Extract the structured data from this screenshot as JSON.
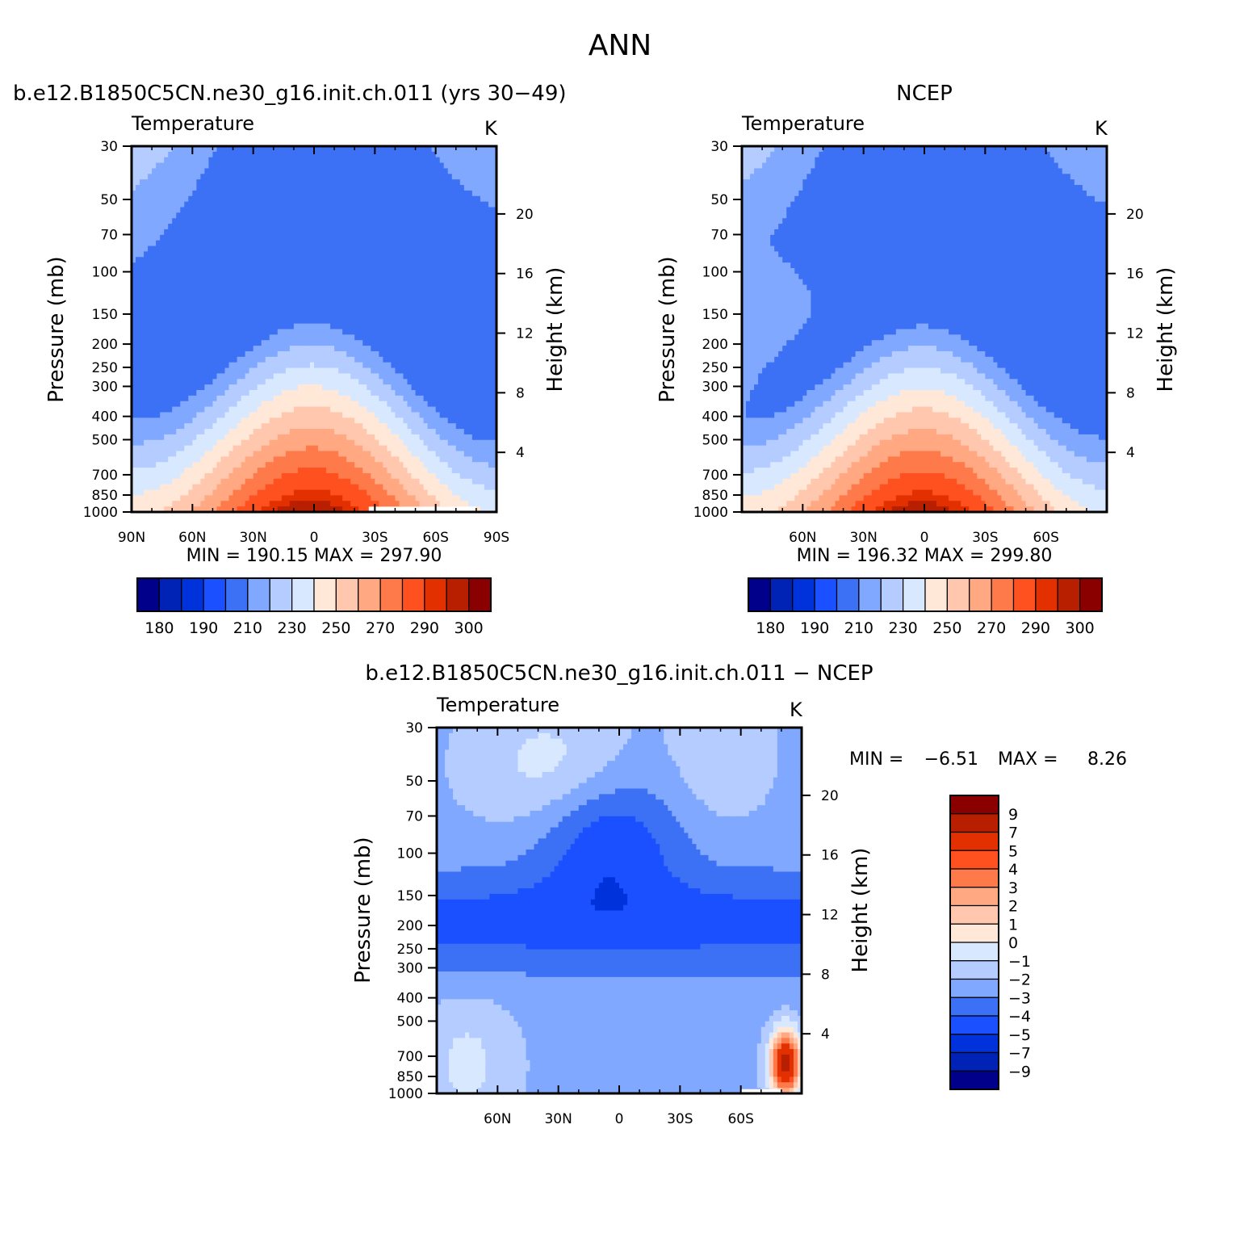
{
  "page": {
    "title": "ANN"
  },
  "colors": {
    "temperature_scale": [
      "#00008a",
      "#0022b5",
      "#0032dc",
      "#1a50ff",
      "#3c70f5",
      "#80a8ff",
      "#b4ccff",
      "#d8e8ff",
      "#ffe8d8",
      "#ffc8ae",
      "#ffa882",
      "#ff7a4a",
      "#ff5020",
      "#e33000",
      "#b81e00",
      "#8a0000"
    ],
    "diff_scale": [
      "#00008a",
      "#0022b5",
      "#0032dc",
      "#1a50ff",
      "#3c70f5",
      "#80a8ff",
      "#b4ccff",
      "#d8e8ff",
      "#ffe8d8",
      "#ffc8ae",
      "#ffa882",
      "#ff7a4a",
      "#ff5020",
      "#e33000",
      "#b81e00",
      "#8a0000"
    ]
  },
  "chart_data": [
    {
      "type": "heatmap",
      "title": "b.e12.B1850C5CN.ne30_g16.init.ch.011 (yrs 30−49)",
      "subtitle_left": "Temperature",
      "subtitle_right": "K",
      "ylabel": "Pressure (mb)",
      "ylabel_right": "Height (km)",
      "x_ticks": [
        "90N",
        "60N",
        "30N",
        "0",
        "30S",
        "60S",
        "90S"
      ],
      "y_ticks": [
        "30",
        "50",
        "70",
        "100",
        "150",
        "200",
        "250",
        "300",
        "400",
        "500",
        "700",
        "850",
        "1000"
      ],
      "y_ticks_right": [
        "20",
        "16",
        "12",
        "8",
        "4"
      ],
      "min_max": "MIN =  190.15   MAX =  297.90",
      "colorbar_labels": [
        "180",
        "190",
        "210",
        "230",
        "250",
        "270",
        "290",
        "300"
      ],
      "ylim": [
        1000,
        30
      ],
      "xlim": [
        90,
        -90
      ],
      "field": "model"
    },
    {
      "type": "heatmap",
      "title": "NCEP",
      "subtitle_left": "Temperature",
      "subtitle_right": "K",
      "ylabel": "Pressure (mb)",
      "ylabel_right": "Height (km)",
      "x_ticks": [
        "",
        "60N",
        "30N",
        "0",
        "30S",
        "60S",
        ""
      ],
      "y_ticks": [
        "30",
        "50",
        "70",
        "100",
        "150",
        "200",
        "250",
        "300",
        "400",
        "500",
        "700",
        "850",
        "1000"
      ],
      "y_ticks_right": [
        "20",
        "16",
        "12",
        "8",
        "4"
      ],
      "min_max": "MIN =  196.32   MAX =  299.80",
      "colorbar_labels": [
        "180",
        "190",
        "210",
        "230",
        "250",
        "270",
        "290",
        "300"
      ],
      "ylim": [
        1000,
        30
      ],
      "xlim": [
        90,
        -90
      ],
      "field": "ncep"
    },
    {
      "type": "heatmap",
      "title": "b.e12.B1850C5CN.ne30_g16.init.ch.011 − NCEP",
      "subtitle_left": "Temperature",
      "subtitle_right": "K",
      "ylabel": "Pressure (mb)",
      "ylabel_right": "Height (km)",
      "x_ticks": [
        "",
        "60N",
        "30N",
        "0",
        "30S",
        "60S",
        ""
      ],
      "y_ticks": [
        "30",
        "50",
        "70",
        "100",
        "150",
        "200",
        "250",
        "300",
        "400",
        "500",
        "700",
        "850",
        "1000"
      ],
      "y_ticks_right": [
        "20",
        "16",
        "12",
        "8",
        "4"
      ],
      "min_label": "MIN =",
      "min_value": "−6.51",
      "max_label": "MAX =",
      "max_value": "8.26",
      "colorbar_labels": [
        "9",
        "7",
        "5",
        "4",
        "3",
        "2",
        "1",
        "0",
        "−1",
        "−2",
        "−3",
        "−4",
        "−5",
        "−7",
        "−9"
      ],
      "ylim": [
        1000,
        30
      ],
      "xlim": [
        90,
        -90
      ],
      "field": "diff"
    }
  ]
}
